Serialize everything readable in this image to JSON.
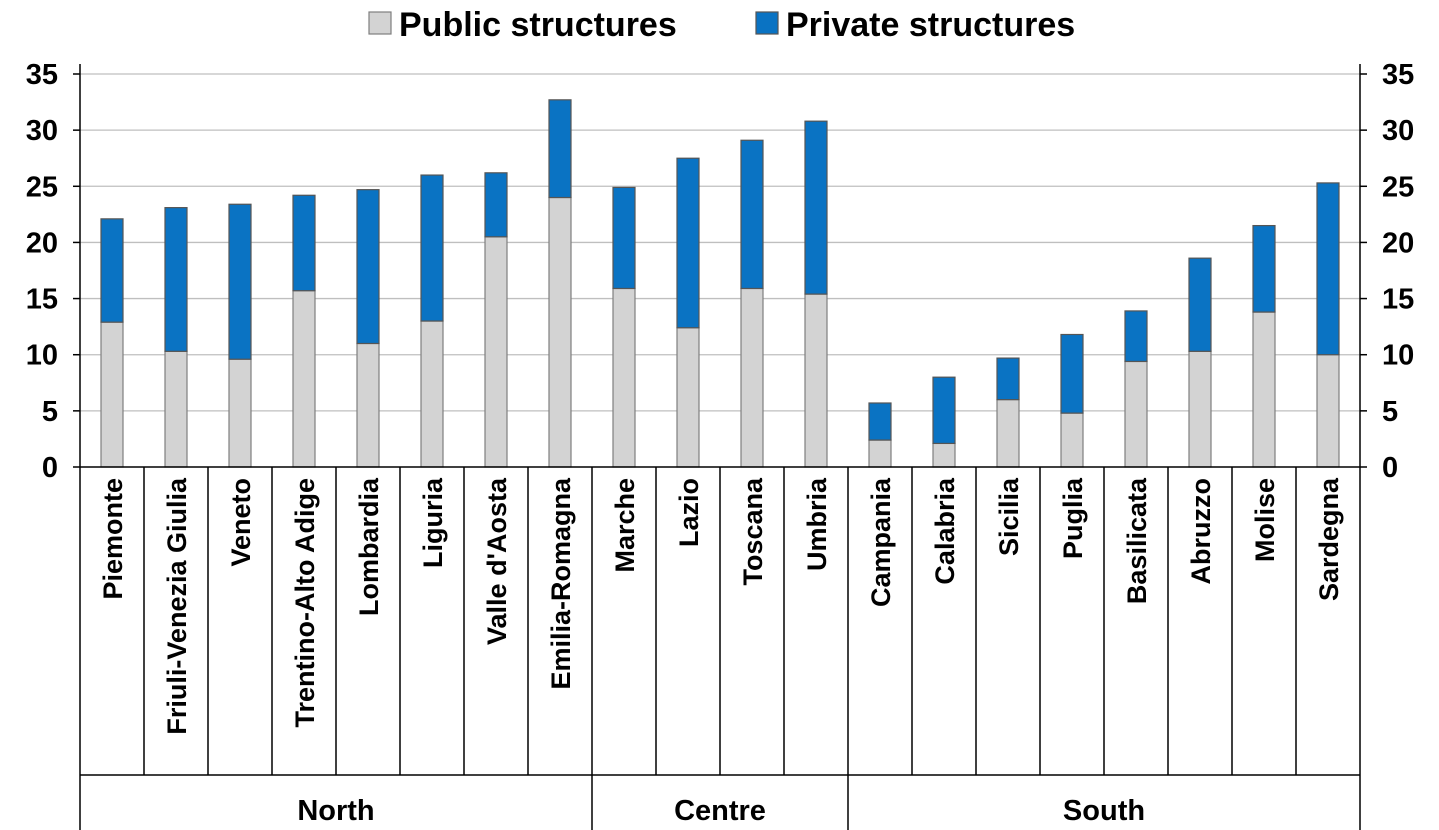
{
  "chart_data": {
    "type": "bar",
    "stacked": true,
    "categories": [
      "Piemonte",
      "Friuli-Venezia Giulia",
      "Veneto",
      "Trentino-Alto Adige",
      "Lombardia",
      "Liguria",
      "Valle d'Aosta",
      "Emilia-Romagna",
      "Marche",
      "Lazio",
      "Toscana",
      "Umbria",
      "Campania",
      "Calabria",
      "Sicilia",
      "Puglia",
      "Basilicata",
      "Abruzzo",
      "Molise",
      "Sardegna"
    ],
    "groups": [
      {
        "label": "North",
        "count": 8
      },
      {
        "label": "Centre",
        "count": 4
      },
      {
        "label": "South",
        "count": 8
      }
    ],
    "series": [
      {
        "name": "Public structures",
        "color": "#d3d3d3",
        "values": [
          12.9,
          10.3,
          9.6,
          15.7,
          11.0,
          13.0,
          20.5,
          24.0,
          15.9,
          12.4,
          15.9,
          15.4,
          2.4,
          2.1,
          6.0,
          4.8,
          9.4,
          10.3,
          13.8,
          10.0
        ]
      },
      {
        "name": "Private structures",
        "color": "#0a73c3",
        "values": [
          9.2,
          12.8,
          13.8,
          8.5,
          13.7,
          13.0,
          5.7,
          8.7,
          9.0,
          15.1,
          13.2,
          15.4,
          3.3,
          5.9,
          3.7,
          7.0,
          4.5,
          8.3,
          7.7,
          15.3
        ]
      }
    ],
    "ylim": [
      0,
      35
    ],
    "yticks": [
      "0",
      "5",
      "10",
      "15",
      "20",
      "25",
      "30",
      "35"
    ],
    "legend_position": "top-center",
    "grid": true
  }
}
